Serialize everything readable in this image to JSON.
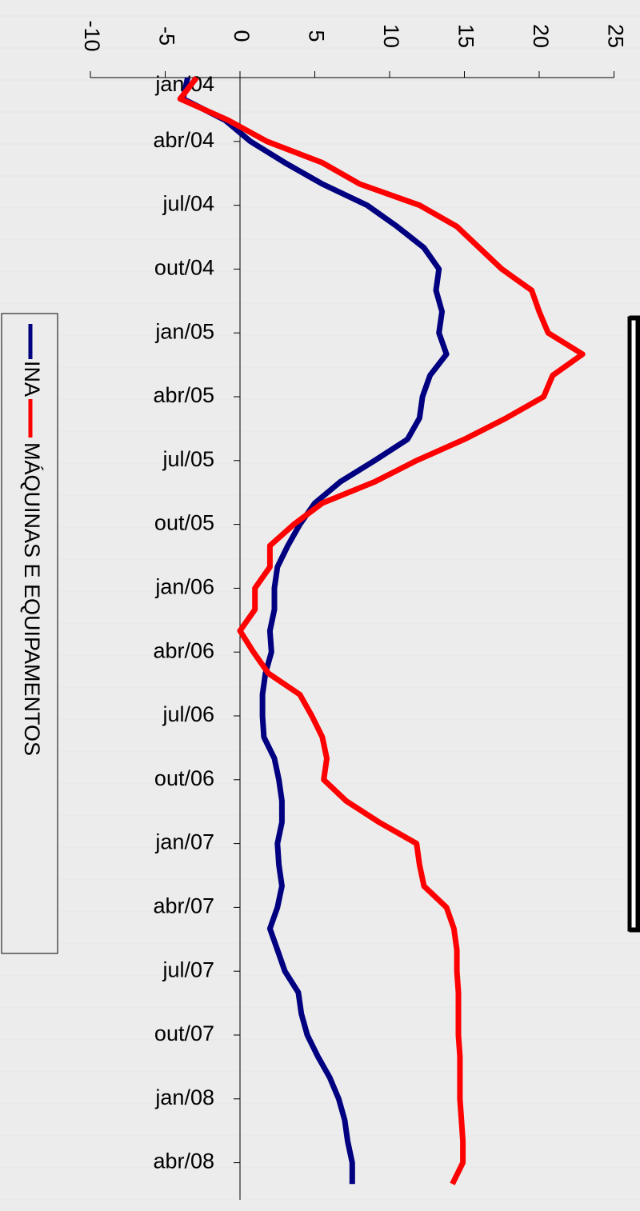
{
  "chart_data": {
    "type": "line",
    "orientation": "rotated 90 degrees clockwise (category axis vertical, value axis horizontal)",
    "categories": [
      "jan/04",
      "fev/04",
      "mar/04",
      "abr/04",
      "mai/04",
      "jun/04",
      "jul/04",
      "ago/04",
      "set/04",
      "out/04",
      "nov/04",
      "dez/04",
      "jan/05",
      "fev/05",
      "mar/05",
      "abr/05",
      "mai/05",
      "jun/05",
      "jul/05",
      "ago/05",
      "set/05",
      "out/05",
      "nov/05",
      "dez/05",
      "jan/06",
      "fev/06",
      "mar/06",
      "abr/06",
      "mai/06",
      "jun/06",
      "jul/06",
      "ago/06",
      "set/06",
      "out/06",
      "nov/06",
      "dez/06",
      "jan/07",
      "fev/07",
      "mar/07",
      "abr/07",
      "mai/07",
      "jun/07",
      "jul/07",
      "ago/07",
      "set/07",
      "out/07",
      "nov/07",
      "dez/07",
      "jan/08",
      "fev/08",
      "mar/08",
      "abr/08",
      "mai/08"
    ],
    "tick_labels": [
      "jan/04",
      "abr/04",
      "jul/04",
      "out/04",
      "jan/05",
      "abr/05",
      "jul/05",
      "out/05",
      "jan/06",
      "abr/06",
      "jul/06",
      "out/06",
      "jan/07",
      "abr/07",
      "jul/07",
      "out/07",
      "jan/08",
      "abr/08"
    ],
    "series": [
      {
        "name": "INA",
        "color": "#000080",
        "values": [
          -3.5,
          -3.8,
          -1.0,
          0.7,
          3.0,
          5.5,
          8.5,
          10.5,
          12.3,
          13.3,
          13.1,
          13.5,
          13.3,
          13.8,
          12.7,
          12.2,
          12.0,
          11.2,
          9.0,
          6.7,
          5.0,
          4.0,
          3.2,
          2.5,
          2.3,
          2.3,
          2.0,
          2.1,
          1.7,
          1.5,
          1.5,
          1.6,
          2.3,
          2.6,
          2.8,
          2.8,
          2.5,
          2.6,
          2.8,
          2.5,
          2.0,
          2.5,
          3.0,
          3.9,
          4.1,
          4.5,
          5.2,
          6.0,
          6.6,
          7.0,
          7.2,
          7.5,
          7.5
        ]
      },
      {
        "name": "MÁQUINAS E EQUIPAMENTOS",
        "color": "#ff0000",
        "values": [
          -2.9,
          -4.0,
          -0.8,
          1.8,
          5.5,
          8.0,
          12.0,
          14.5,
          16.0,
          17.5,
          19.5,
          20.0,
          20.6,
          22.9,
          20.9,
          20.3,
          17.8,
          15.0,
          11.8,
          9.0,
          5.5,
          3.6,
          2.0,
          2.0,
          1.0,
          1.0,
          0.0,
          0.9,
          1.9,
          4.0,
          4.8,
          5.5,
          5.8,
          5.6,
          7.1,
          9.3,
          11.8,
          12.0,
          12.3,
          13.8,
          14.3,
          14.5,
          14.5,
          14.6,
          14.6,
          14.6,
          14.7,
          14.7,
          14.7,
          14.8,
          14.9,
          14.9,
          14.2
        ]
      }
    ],
    "ylim": [
      -10,
      25
    ],
    "y_ticks": [
      "-10",
      "-5",
      "0",
      "5",
      "10",
      "15",
      "20",
      "25"
    ],
    "grid": false,
    "legend_position": "left"
  }
}
